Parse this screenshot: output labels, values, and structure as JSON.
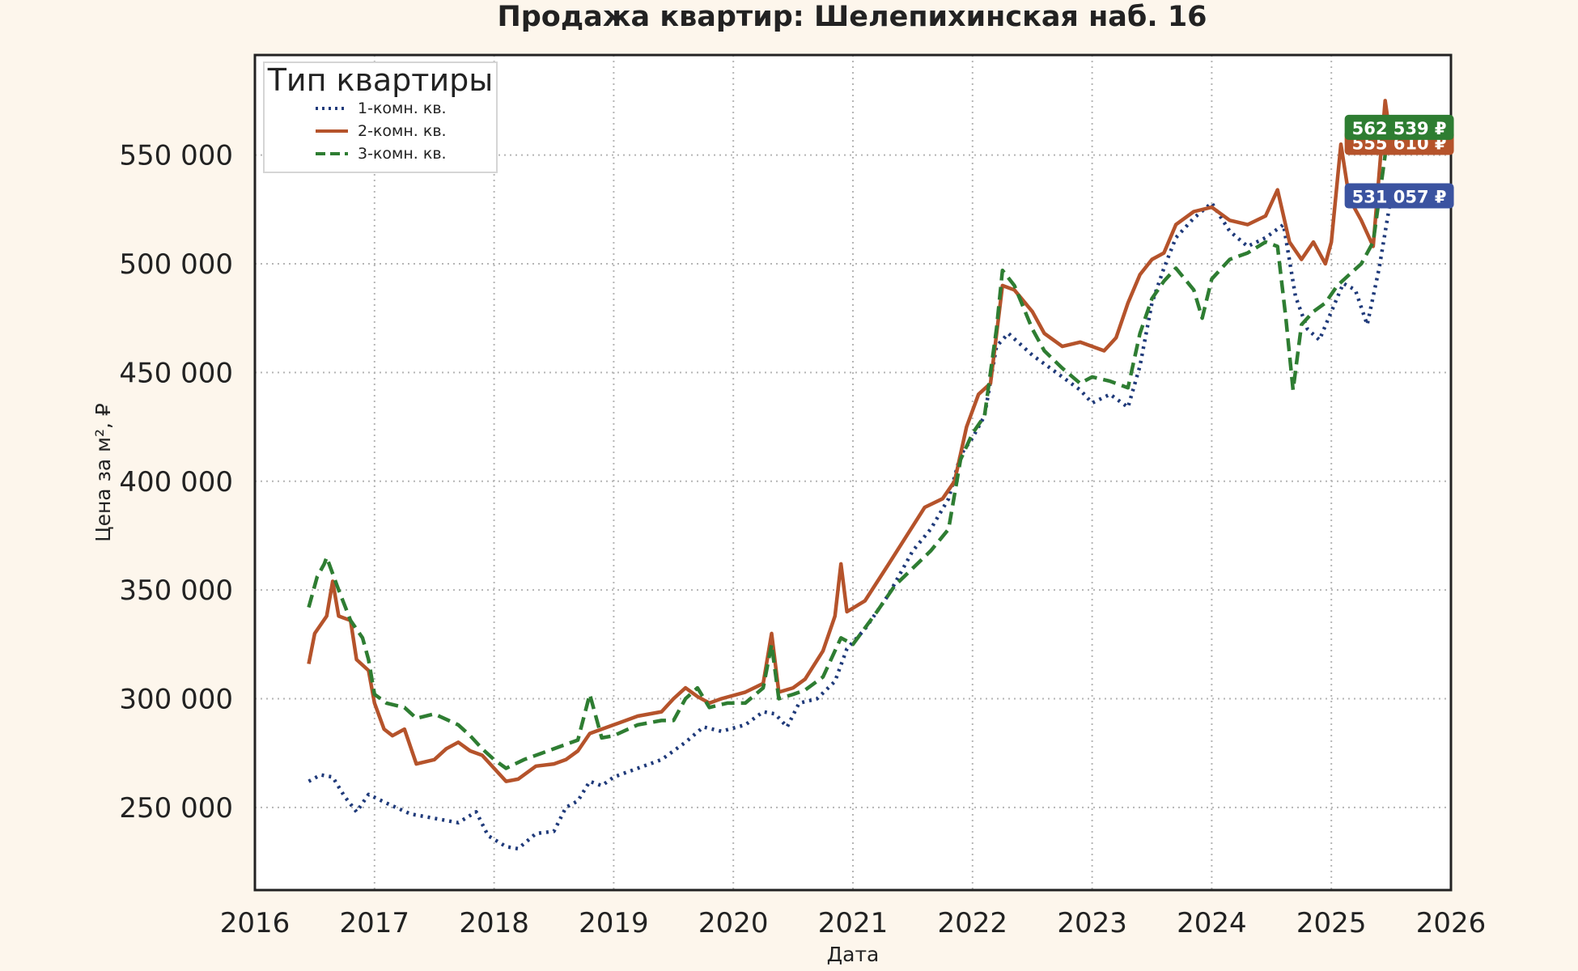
{
  "colors": {
    "page_background": "#fdf6ec",
    "plot_background": "#ffffff",
    "grid": "#b5b5b5",
    "frame": "#222222"
  },
  "chart_data": {
    "type": "line",
    "title": "Продажа квартир: Шелепихинская наб. 16",
    "xlabel": "Дата",
    "ylabel": "Цена за м², ₽",
    "xlim": [
      2016.0,
      2026.0
    ],
    "ylim": [
      212000,
      596000
    ],
    "x_ticks": [
      2016,
      2017,
      2018,
      2019,
      2020,
      2021,
      2022,
      2023,
      2024,
      2025,
      2026
    ],
    "x_tick_labels": [
      "2016",
      "2017",
      "2018",
      "2019",
      "2020",
      "2021",
      "2022",
      "2023",
      "2024",
      "2025",
      "2026"
    ],
    "y_ticks": [
      250000,
      300000,
      350000,
      400000,
      450000,
      500000,
      550000
    ],
    "y_tick_labels": [
      "250 000",
      "300 000",
      "350 000",
      "400 000",
      "450 000",
      "500 000",
      "550 000"
    ],
    "grid": true,
    "legend": {
      "title": "Тип квартиры",
      "placement": "top-left"
    },
    "series": [
      {
        "name": "1-комн. кв.",
        "color": "#1f3a7a",
        "style": "dotted",
        "end_label": "531 057 ₽",
        "end_label_color": "#3b53a0",
        "points": [
          [
            2016.45,
            262000
          ],
          [
            2016.55,
            265000
          ],
          [
            2016.65,
            264000
          ],
          [
            2016.75,
            255000
          ],
          [
            2016.85,
            248000
          ],
          [
            2016.95,
            256000
          ],
          [
            2017.1,
            252000
          ],
          [
            2017.3,
            247000
          ],
          [
            2017.5,
            245000
          ],
          [
            2017.7,
            243000
          ],
          [
            2017.85,
            248000
          ],
          [
            2017.95,
            237000
          ],
          [
            2018.1,
            232000
          ],
          [
            2018.2,
            231000
          ],
          [
            2018.35,
            238000
          ],
          [
            2018.5,
            239000
          ],
          [
            2018.6,
            250000
          ],
          [
            2018.7,
            253000
          ],
          [
            2018.8,
            262000
          ],
          [
            2018.9,
            260000
          ],
          [
            2019.0,
            264000
          ],
          [
            2019.2,
            268000
          ],
          [
            2019.4,
            272000
          ],
          [
            2019.6,
            280000
          ],
          [
            2019.75,
            287000
          ],
          [
            2019.9,
            285000
          ],
          [
            2020.1,
            288000
          ],
          [
            2020.25,
            294000
          ],
          [
            2020.35,
            293000
          ],
          [
            2020.45,
            287000
          ],
          [
            2020.55,
            298000
          ],
          [
            2020.7,
            300000
          ],
          [
            2020.85,
            308000
          ],
          [
            2020.95,
            323000
          ],
          [
            2021.1,
            332000
          ],
          [
            2021.3,
            348000
          ],
          [
            2021.5,
            368000
          ],
          [
            2021.65,
            378000
          ],
          [
            2021.8,
            392000
          ],
          [
            2021.9,
            412000
          ],
          [
            2022.0,
            420000
          ],
          [
            2022.1,
            430000
          ],
          [
            2022.2,
            462000
          ],
          [
            2022.3,
            468000
          ],
          [
            2022.5,
            458000
          ],
          [
            2022.7,
            450000
          ],
          [
            2022.9,
            442000
          ],
          [
            2023.0,
            436000
          ],
          [
            2023.15,
            440000
          ],
          [
            2023.3,
            434000
          ],
          [
            2023.4,
            453000
          ],
          [
            2023.5,
            482000
          ],
          [
            2023.6,
            498000
          ],
          [
            2023.7,
            512000
          ],
          [
            2023.85,
            521000
          ],
          [
            2024.0,
            528000
          ],
          [
            2024.15,
            515000
          ],
          [
            2024.3,
            508000
          ],
          [
            2024.45,
            512000
          ],
          [
            2024.6,
            518000
          ],
          [
            2024.7,
            485000
          ],
          [
            2024.8,
            470000
          ],
          [
            2024.9,
            465000
          ],
          [
            2025.0,
            478000
          ],
          [
            2025.1,
            491000
          ],
          [
            2025.2,
            488000
          ],
          [
            2025.3,
            472000
          ],
          [
            2025.4,
            498000
          ],
          [
            2025.5,
            531057
          ]
        ]
      },
      {
        "name": "2-комн. кв.",
        "color": "#b5532b",
        "style": "solid",
        "end_label": "555 610 ₽",
        "end_label_color": "#b5532b",
        "points": [
          [
            2016.45,
            316000
          ],
          [
            2016.5,
            330000
          ],
          [
            2016.6,
            338000
          ],
          [
            2016.65,
            354000
          ],
          [
            2016.7,
            338000
          ],
          [
            2016.8,
            336000
          ],
          [
            2016.85,
            318000
          ],
          [
            2016.95,
            313000
          ],
          [
            2017.0,
            298000
          ],
          [
            2017.08,
            286000
          ],
          [
            2017.15,
            283000
          ],
          [
            2017.25,
            286000
          ],
          [
            2017.35,
            270000
          ],
          [
            2017.5,
            272000
          ],
          [
            2017.6,
            277000
          ],
          [
            2017.7,
            280000
          ],
          [
            2017.8,
            276000
          ],
          [
            2017.9,
            274000
          ],
          [
            2018.0,
            268000
          ],
          [
            2018.1,
            262000
          ],
          [
            2018.2,
            263000
          ],
          [
            2018.35,
            269000
          ],
          [
            2018.5,
            270000
          ],
          [
            2018.6,
            272000
          ],
          [
            2018.7,
            276000
          ],
          [
            2018.8,
            284000
          ],
          [
            2018.9,
            286000
          ],
          [
            2019.0,
            288000
          ],
          [
            2019.2,
            292000
          ],
          [
            2019.4,
            294000
          ],
          [
            2019.5,
            300000
          ],
          [
            2019.6,
            305000
          ],
          [
            2019.7,
            301000
          ],
          [
            2019.8,
            298000
          ],
          [
            2019.9,
            300000
          ],
          [
            2020.1,
            303000
          ],
          [
            2020.25,
            307000
          ],
          [
            2020.32,
            330000
          ],
          [
            2020.38,
            303000
          ],
          [
            2020.5,
            305000
          ],
          [
            2020.6,
            309000
          ],
          [
            2020.75,
            322000
          ],
          [
            2020.85,
            338000
          ],
          [
            2020.9,
            362000
          ],
          [
            2020.95,
            340000
          ],
          [
            2021.1,
            345000
          ],
          [
            2021.3,
            362000
          ],
          [
            2021.45,
            375000
          ],
          [
            2021.6,
            388000
          ],
          [
            2021.75,
            392000
          ],
          [
            2021.85,
            400000
          ],
          [
            2021.95,
            425000
          ],
          [
            2022.05,
            440000
          ],
          [
            2022.15,
            445000
          ],
          [
            2022.25,
            490000
          ],
          [
            2022.35,
            488000
          ],
          [
            2022.5,
            478000
          ],
          [
            2022.6,
            468000
          ],
          [
            2022.75,
            462000
          ],
          [
            2022.9,
            464000
          ],
          [
            2023.0,
            462000
          ],
          [
            2023.1,
            460000
          ],
          [
            2023.2,
            466000
          ],
          [
            2023.3,
            482000
          ],
          [
            2023.4,
            495000
          ],
          [
            2023.5,
            502000
          ],
          [
            2023.6,
            505000
          ],
          [
            2023.7,
            518000
          ],
          [
            2023.85,
            524000
          ],
          [
            2024.0,
            526000
          ],
          [
            2024.15,
            520000
          ],
          [
            2024.3,
            518000
          ],
          [
            2024.45,
            522000
          ],
          [
            2024.55,
            534000
          ],
          [
            2024.65,
            510000
          ],
          [
            2024.75,
            502000
          ],
          [
            2024.85,
            510000
          ],
          [
            2024.95,
            500000
          ],
          [
            2025.0,
            510000
          ],
          [
            2025.08,
            555000
          ],
          [
            2025.15,
            530000
          ],
          [
            2025.25,
            520000
          ],
          [
            2025.35,
            508000
          ],
          [
            2025.45,
            575000
          ],
          [
            2025.5,
            555610
          ]
        ]
      },
      {
        "name": "3-комн. кв.",
        "color": "#2e7d32",
        "style": "dashed",
        "end_label": "562 539 ₽",
        "end_label_color": "#2e7d32",
        "points": [
          [
            2016.45,
            342000
          ],
          [
            2016.52,
            356000
          ],
          [
            2016.58,
            362000
          ],
          [
            2016.6,
            365000
          ],
          [
            2016.7,
            350000
          ],
          [
            2016.8,
            336000
          ],
          [
            2016.9,
            328000
          ],
          [
            2016.95,
            318000
          ],
          [
            2017.0,
            302000
          ],
          [
            2017.1,
            298000
          ],
          [
            2017.25,
            296000
          ],
          [
            2017.35,
            291000
          ],
          [
            2017.5,
            293000
          ],
          [
            2017.7,
            288000
          ],
          [
            2017.8,
            283000
          ],
          [
            2017.9,
            277000
          ],
          [
            2018.0,
            272000
          ],
          [
            2018.1,
            268000
          ],
          [
            2018.25,
            272000
          ],
          [
            2018.4,
            275000
          ],
          [
            2018.55,
            278000
          ],
          [
            2018.7,
            281000
          ],
          [
            2018.8,
            302000
          ],
          [
            2018.9,
            282000
          ],
          [
            2019.0,
            283000
          ],
          [
            2019.2,
            288000
          ],
          [
            2019.4,
            290000
          ],
          [
            2019.5,
            290000
          ],
          [
            2019.6,
            300000
          ],
          [
            2019.7,
            305000
          ],
          [
            2019.8,
            296000
          ],
          [
            2019.95,
            298000
          ],
          [
            2020.1,
            298000
          ],
          [
            2020.25,
            305000
          ],
          [
            2020.32,
            325000
          ],
          [
            2020.38,
            300000
          ],
          [
            2020.5,
            302000
          ],
          [
            2020.6,
            304000
          ],
          [
            2020.75,
            310000
          ],
          [
            2020.9,
            328000
          ],
          [
            2021.0,
            325000
          ],
          [
            2021.2,
            340000
          ],
          [
            2021.35,
            352000
          ],
          [
            2021.5,
            360000
          ],
          [
            2021.65,
            368000
          ],
          [
            2021.8,
            378000
          ],
          [
            2021.9,
            410000
          ],
          [
            2022.0,
            422000
          ],
          [
            2022.1,
            430000
          ],
          [
            2022.2,
            470000
          ],
          [
            2022.25,
            497000
          ],
          [
            2022.35,
            490000
          ],
          [
            2022.5,
            470000
          ],
          [
            2022.6,
            460000
          ],
          [
            2022.75,
            452000
          ],
          [
            2022.9,
            445000
          ],
          [
            2023.0,
            448000
          ],
          [
            2023.15,
            446000
          ],
          [
            2023.3,
            443000
          ],
          [
            2023.4,
            468000
          ],
          [
            2023.5,
            484000
          ],
          [
            2023.6,
            492000
          ],
          [
            2023.7,
            498000
          ],
          [
            2023.85,
            488000
          ],
          [
            2023.92,
            475000
          ],
          [
            2024.0,
            493000
          ],
          [
            2024.15,
            502000
          ],
          [
            2024.3,
            505000
          ],
          [
            2024.45,
            510000
          ],
          [
            2024.55,
            508000
          ],
          [
            2024.62,
            475000
          ],
          [
            2024.68,
            442000
          ],
          [
            2024.75,
            472000
          ],
          [
            2024.85,
            478000
          ],
          [
            2024.95,
            482000
          ],
          [
            2025.05,
            490000
          ],
          [
            2025.15,
            495000
          ],
          [
            2025.25,
            500000
          ],
          [
            2025.35,
            510000
          ],
          [
            2025.45,
            550000
          ],
          [
            2025.5,
            562539
          ]
        ]
      }
    ]
  }
}
